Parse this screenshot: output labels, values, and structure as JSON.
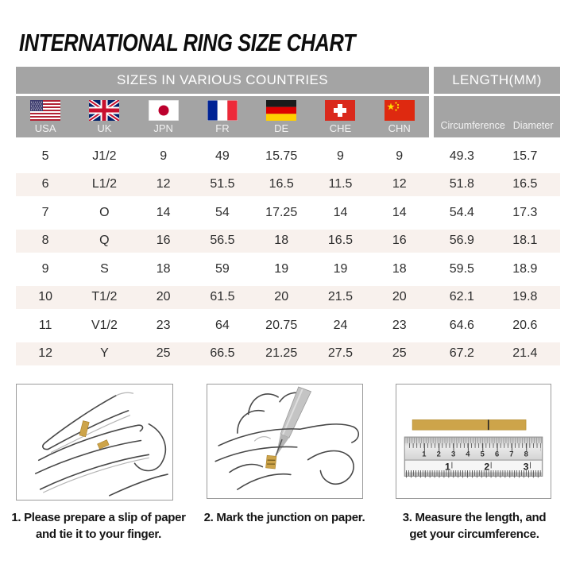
{
  "title": "INTERNATIONAL RING SIZE CHART",
  "chart_data": {
    "type": "table",
    "group_headers": {
      "countries": "SIZES IN VARIOUS COUNTRIES",
      "length": "LENGTH(MM)"
    },
    "columns": [
      "USA",
      "UK",
      "JPN",
      "FR",
      "DE",
      "CHE",
      "CHN",
      "Circumference",
      "Diameter"
    ],
    "flags": [
      "usa",
      "uk",
      "japan",
      "france",
      "germany",
      "switzerland",
      "china"
    ],
    "rows": [
      [
        "5",
        "J1/2",
        "9",
        "49",
        "15.75",
        "9",
        "9",
        "49.3",
        "15.7"
      ],
      [
        "6",
        "L1/2",
        "12",
        "51.5",
        "16.5",
        "11.5",
        "12",
        "51.8",
        "16.5"
      ],
      [
        "7",
        "O",
        "14",
        "54",
        "17.25",
        "14",
        "14",
        "54.4",
        "17.3"
      ],
      [
        "8",
        "Q",
        "16",
        "56.5",
        "18",
        "16.5",
        "16",
        "56.9",
        "18.1"
      ],
      [
        "9",
        "S",
        "18",
        "59",
        "19",
        "19",
        "18",
        "59.5",
        "18.9"
      ],
      [
        "10",
        "T1/2",
        "20",
        "61.5",
        "20",
        "21.5",
        "20",
        "62.1",
        "19.8"
      ],
      [
        "11",
        "V1/2",
        "23",
        "64",
        "20.75",
        "24",
        "23",
        "64.6",
        "20.6"
      ],
      [
        "12",
        "Y",
        "25",
        "66.5",
        "21.25",
        "27.5",
        "25",
        "67.2",
        "21.4"
      ]
    ]
  },
  "instructions": [
    {
      "illustration": "hand-with-paper-strip",
      "lines": [
        "1. Please prepare a slip of paper",
        "and tie it to your finger."
      ]
    },
    {
      "illustration": "pen-marking-junction",
      "lines": [
        "2. Mark the junction on paper."
      ]
    },
    {
      "illustration": "ruler-measuring-strip",
      "lines": [
        "3. Measure the length, and",
        "get your circumference."
      ],
      "ruler": {
        "top_scale": [
          "1",
          "2",
          "3",
          "4",
          "5",
          "6",
          "7",
          "8"
        ],
        "bottom_scale": [
          "1",
          "2",
          "3"
        ]
      }
    }
  ],
  "colors": {
    "header_gray": "#a4a4a4",
    "stripe": "#f8f1ed",
    "paper_gold": "#cda44a",
    "text_dark": "#2d2d2d"
  }
}
